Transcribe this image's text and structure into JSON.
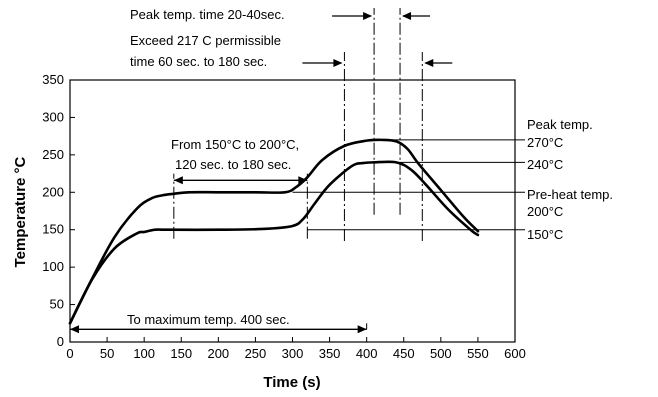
{
  "chart_data": {
    "type": "line",
    "xlabel": "Time (s)",
    "ylabel": "Temperature °C",
    "xlim": [
      0,
      600
    ],
    "ylim": [
      0,
      350
    ],
    "x_ticks": [
      "0",
      "50",
      "100",
      "150",
      "200",
      "250",
      "300",
      "350",
      "400",
      "450",
      "500",
      "550",
      "600"
    ],
    "y_ticks": [
      "0",
      "50",
      "100",
      "150",
      "200",
      "250",
      "300",
      "350"
    ],
    "grid": false,
    "series": [
      {
        "x": [
          0,
          30,
          60,
          90,
          110,
          125,
          140,
          160,
          200,
          250,
          290,
          305,
          320,
          340,
          370,
          400,
          420,
          440,
          455,
          470,
          500,
          530,
          550
        ],
        "y": [
          25,
          85,
          140,
          178,
          192,
          196,
          198,
          200,
          200,
          200,
          200,
          207,
          220,
          243,
          262,
          269,
          270,
          268,
          258,
          238,
          203,
          168,
          148
        ]
      },
      {
        "x": [
          0,
          30,
          60,
          90,
          100,
          115,
          130,
          200,
          260,
          300,
          315,
          330,
          350,
          380,
          395,
          410,
          440,
          460,
          480,
          510,
          540,
          550
        ],
        "y": [
          25,
          84,
          125,
          145,
          147,
          150,
          150,
          150,
          151,
          155,
          165,
          185,
          210,
          235,
          239,
          240,
          240,
          230,
          210,
          177,
          150,
          143
        ]
      }
    ],
    "annotations": {
      "peak_time": "Peak temp. time 20-40sec.",
      "exceed_line1": "Exceed 217 C permissible",
      "exceed_line2": "time 60 sec. to 180 sec.",
      "preheat_line1": "From 150°C to 200°C,",
      "preheat_line2": "120 sec. to 180 sec.",
      "to_max": "To maximum temp. 400 sec.",
      "right_peak_label": "Peak temp.",
      "right_270": "270°C",
      "right_240": "240°C",
      "right_preheat_label": "Pre-heat temp.",
      "right_200": "200°C",
      "right_150": "150°C"
    }
  }
}
